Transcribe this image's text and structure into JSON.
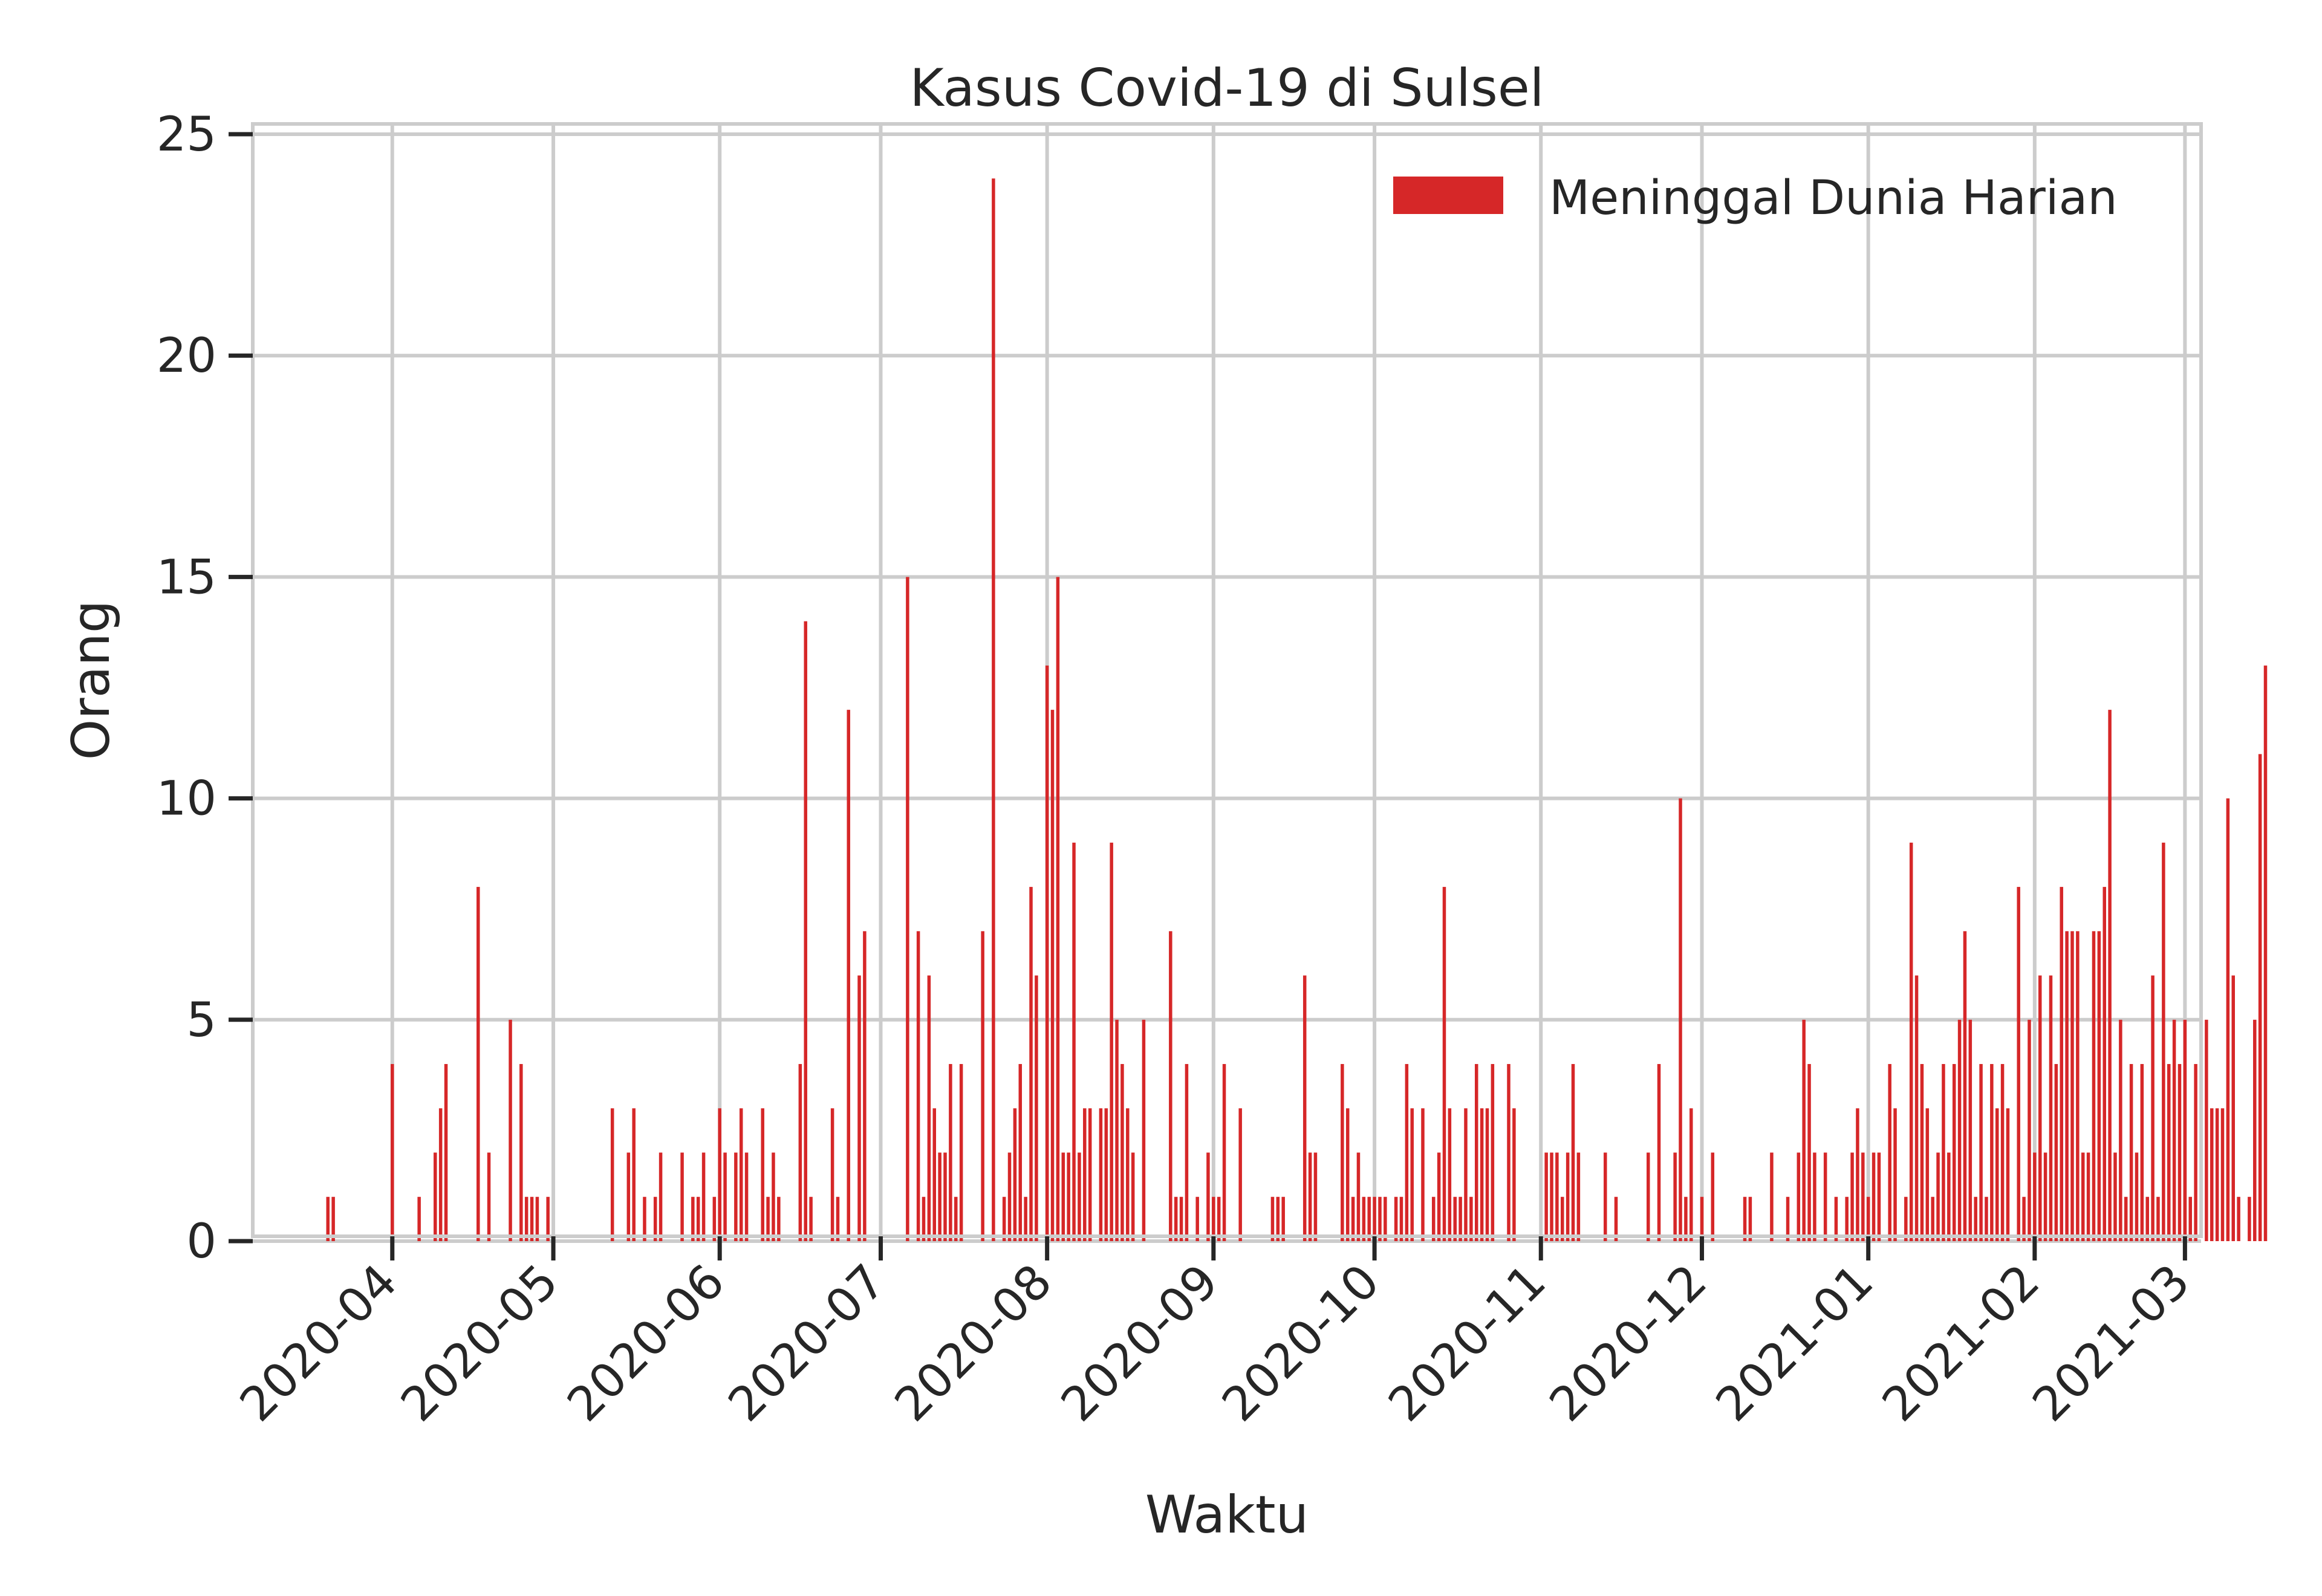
{
  "chart_data": {
    "type": "bar",
    "title": "Kasus Covid-19 di Sulsel",
    "xlabel": "Waktu",
    "ylabel": "Orang",
    "ylim": [
      0,
      25
    ],
    "yticks": [
      0,
      5,
      10,
      15,
      20,
      25
    ],
    "xlim": [
      "2020-03-06",
      "2021-03-04"
    ],
    "xticks": [
      "2020-04",
      "2020-05",
      "2020-06",
      "2020-07",
      "2020-08",
      "2020-09",
      "2020-10",
      "2020-11",
      "2020-12",
      "2021-01",
      "2021-02",
      "2021-03"
    ],
    "grid": true,
    "legend_position": "top-right",
    "series": [
      {
        "name": "Meninggal Dunia Harian",
        "color": "#d62728",
        "start_date": "2020-03-20",
        "values": [
          1,
          1,
          0,
          0,
          0,
          0,
          0,
          0,
          0,
          0,
          0,
          0,
          4,
          0,
          0,
          0,
          0,
          1,
          0,
          0,
          2,
          3,
          4,
          0,
          0,
          0,
          0,
          0,
          8,
          0,
          2,
          0,
          0,
          0,
          5,
          0,
          4,
          1,
          1,
          1,
          0,
          1,
          0,
          0,
          0,
          0,
          0,
          0,
          0,
          0,
          0,
          0,
          0,
          3,
          0,
          0,
          2,
          3,
          0,
          1,
          0,
          1,
          2,
          0,
          0,
          0,
          2,
          0,
          1,
          1,
          2,
          0,
          1,
          3,
          2,
          0,
          2,
          3,
          2,
          0,
          0,
          3,
          1,
          2,
          1,
          0,
          0,
          0,
          4,
          14,
          1,
          0,
          0,
          0,
          3,
          1,
          0,
          12,
          0,
          6,
          7,
          0,
          0,
          0,
          0,
          0,
          0,
          0,
          15,
          0,
          7,
          1,
          6,
          3,
          2,
          2,
          4,
          1,
          4,
          0,
          0,
          0,
          7,
          0,
          24,
          0,
          1,
          2,
          3,
          4,
          1,
          8,
          6,
          0,
          13,
          12,
          15,
          2,
          2,
          9,
          2,
          3,
          3,
          0,
          3,
          3,
          9,
          5,
          4,
          3,
          2,
          0,
          5,
          0,
          0,
          0,
          0,
          7,
          1,
          1,
          4,
          0,
          1,
          0,
          2,
          1,
          1,
          4,
          0,
          0,
          3,
          0,
          0,
          0,
          0,
          0,
          1,
          1,
          1,
          0,
          0,
          0,
          6,
          2,
          2,
          0,
          0,
          0,
          0,
          4,
          3,
          1,
          2,
          1,
          1,
          1,
          1,
          1,
          0,
          1,
          1,
          4,
          3,
          0,
          3,
          0,
          1,
          2,
          8,
          3,
          1,
          1,
          3,
          1,
          4,
          3,
          3,
          4,
          0,
          0,
          4,
          3,
          0,
          0,
          0,
          0,
          0,
          2,
          2,
          2,
          1,
          2,
          4,
          2,
          0,
          0,
          0,
          0,
          2,
          0,
          1,
          0,
          0,
          0,
          0,
          0,
          2,
          0,
          4,
          0,
          0,
          2,
          10,
          1,
          3,
          0,
          1,
          0,
          2,
          0,
          0,
          0,
          0,
          0,
          1,
          1,
          0,
          0,
          0,
          2,
          0,
          0,
          1,
          0,
          2,
          5,
          4,
          2,
          0,
          2,
          0,
          1,
          0,
          1,
          2,
          3,
          2,
          1,
          2,
          2,
          0,
          4,
          3,
          0,
          1,
          9,
          6,
          4,
          3,
          1,
          2,
          4,
          2,
          4,
          5,
          7,
          5,
          1,
          4,
          1,
          4,
          3,
          4,
          3,
          0,
          8,
          1,
          5,
          2,
          6,
          2,
          6,
          4,
          8,
          7,
          7,
          7,
          2,
          2,
          7,
          7,
          8,
          12,
          2,
          5,
          1,
          4,
          2,
          4,
          1,
          6,
          1,
          9,
          4,
          5,
          4,
          5,
          1,
          4,
          0,
          5,
          3,
          3,
          3,
          10,
          6,
          1,
          0,
          1,
          5,
          11,
          13
        ]
      }
    ]
  }
}
